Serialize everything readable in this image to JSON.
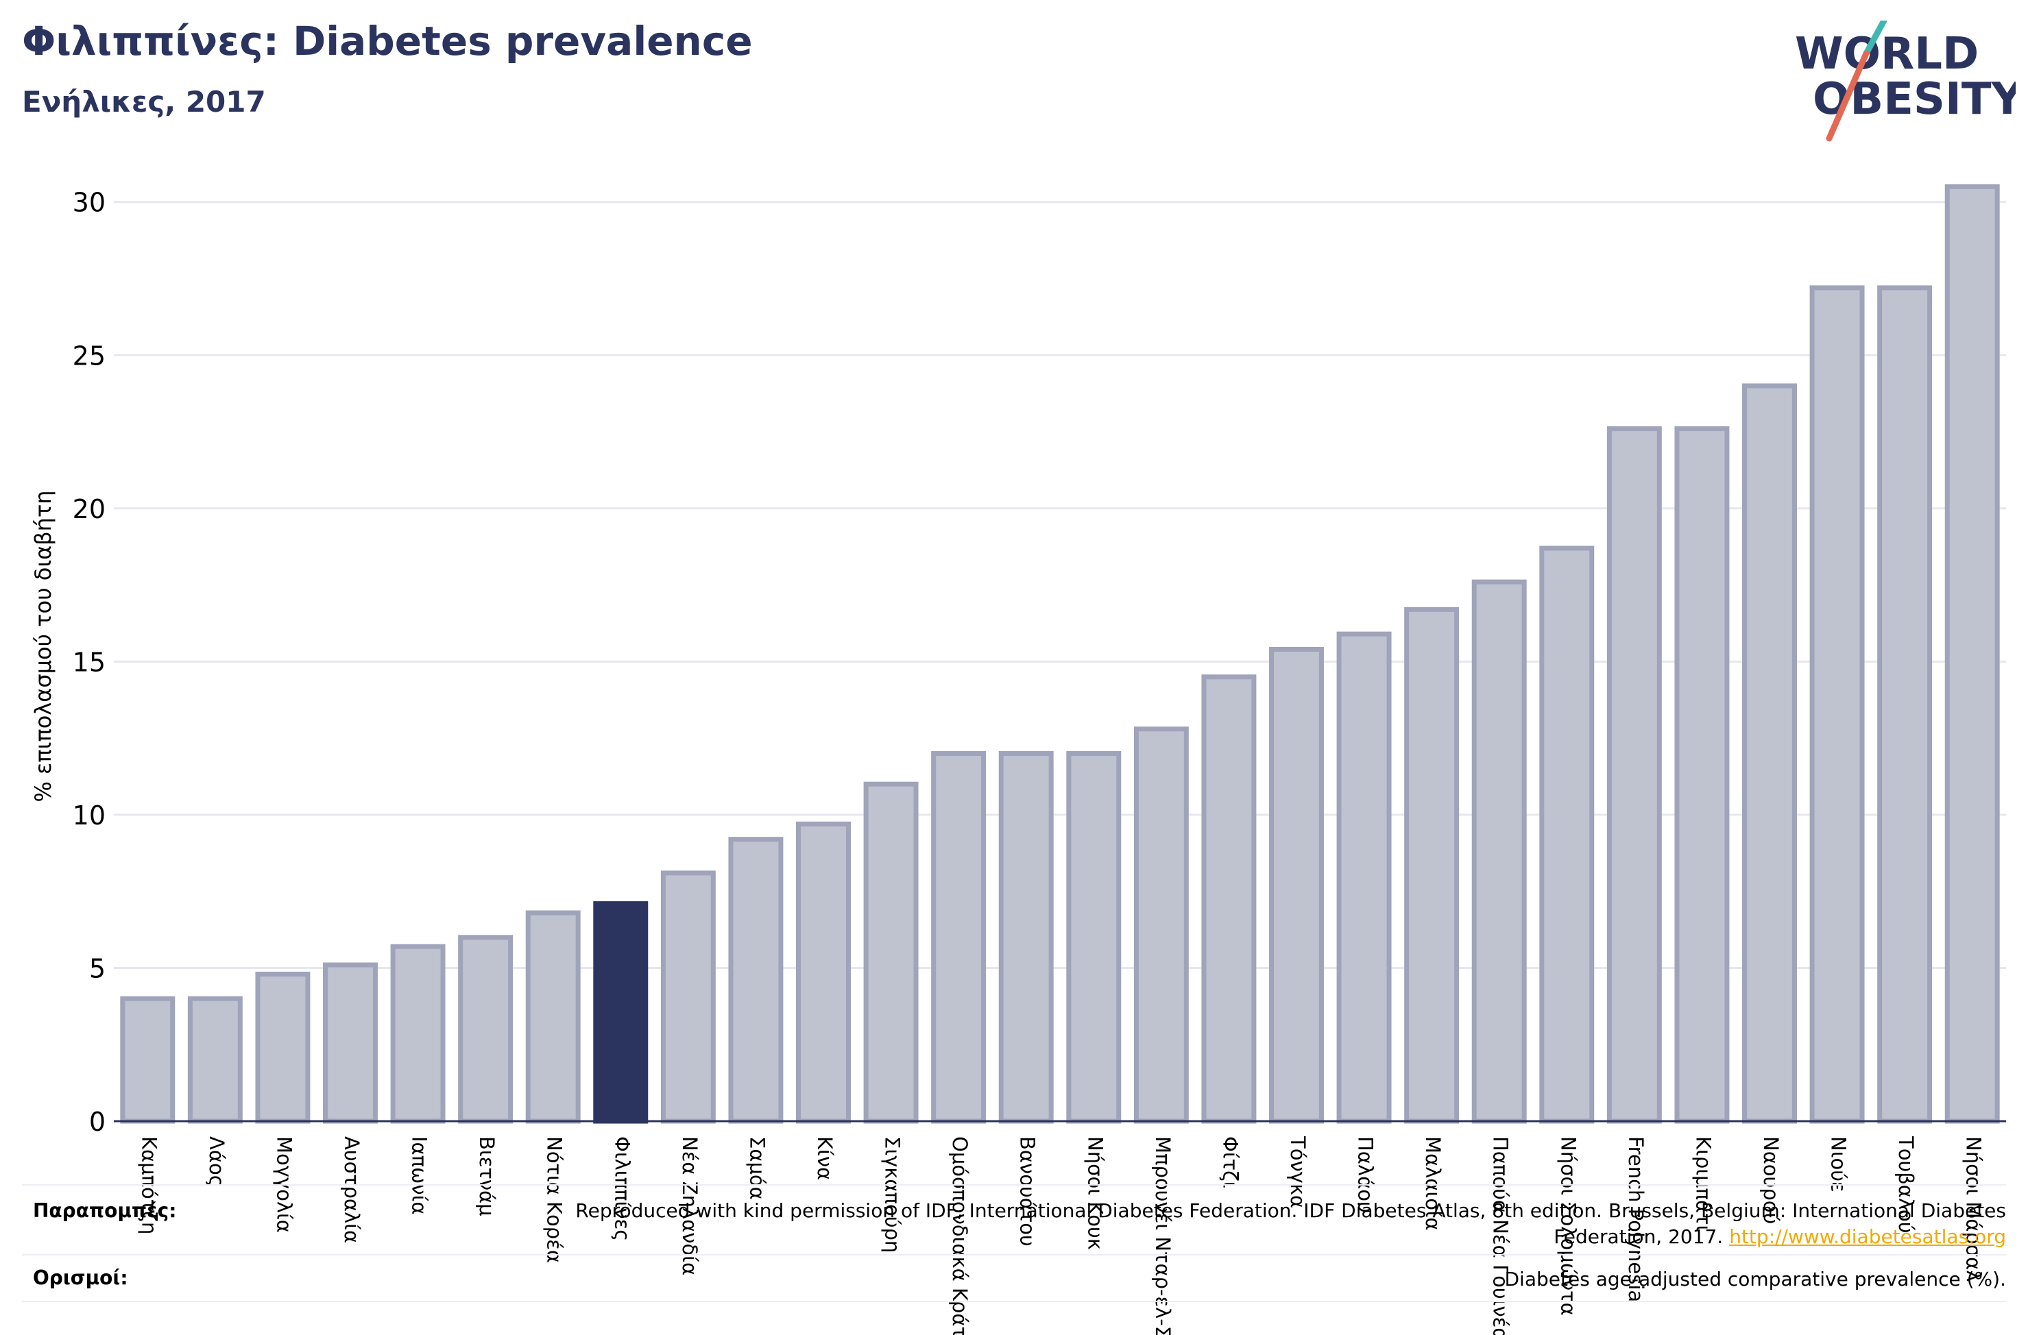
{
  "header": {
    "title": "Φιλιππίνες: Diabetes prevalence",
    "subtitle": "Ενήλικες, 2017"
  },
  "logo": {
    "line1": "WORLD",
    "line2": "OBESITY",
    "colors": {
      "text": "#2b345f",
      "slash_top": "#3fb8b3",
      "slash_bottom": "#e26a55"
    }
  },
  "colors": {
    "bar_fill": "#bfc2cf",
    "bar_stroke": "#9fa4ba",
    "highlight": "#2b345f",
    "grid": "#e6e8ee",
    "axis": "#2b345f"
  },
  "chart_data": {
    "type": "bar",
    "ylabel": "% επιπολασμού του διαβήτη",
    "ylim": [
      0,
      30
    ],
    "yticks": [
      0,
      5,
      10,
      15,
      20,
      25,
      30
    ],
    "grid": true,
    "highlight": "Φιλιππίνες",
    "categories": [
      "Καμπότζη",
      "Λάος",
      "Μογγολία",
      "Αυστραλία",
      "Ιαπωνία",
      "Βιετνάμ",
      "Νότια Κορέα",
      "Φιλιππίνες",
      "Νέα Ζηλανδία",
      "Σαμόα",
      "Κίνα",
      "Σιγκαπούρη",
      "Ομόσπονδιακά Κράτη",
      "Βανουάτου",
      "Νήσοι Κουκ",
      "Μπρουνέι Νταρ-ελ-Σαλάμ",
      "Φίτζι",
      "Τόνγκα",
      "Παλάου",
      "Μαλαισία",
      "Παπούα Νέα Γουινέα",
      "Νήσοι Σολομώντα",
      "French Polynesia",
      "Κιριμπάτι",
      "Ναουρού",
      "Νιούε",
      "Τουβαλού",
      "Νήσοι Μάρσαλ"
    ],
    "values": [
      4.0,
      4.0,
      4.8,
      5.1,
      5.7,
      6.0,
      6.8,
      7.1,
      8.1,
      9.2,
      9.7,
      11.0,
      12.0,
      12.0,
      12.0,
      12.8,
      14.5,
      15.4,
      15.9,
      16.7,
      17.6,
      18.7,
      22.6,
      22.6,
      24.0,
      27.2,
      27.2,
      30.5
    ]
  },
  "footer": {
    "references_label": "Παραπομπές:",
    "references_text": "Reproduced with kind permission of IDF, International Diabetes Federation. IDF Diabetes Atlas, 8th edition. Brussels, Belgium: International Diabetes Federation, 2017.",
    "references_link": "http://www.diabetesatlas.org",
    "definitions_label": "Ορισμοί:",
    "definitions_text": "Diabetes age-adjusted comparative prevalence (%)."
  }
}
